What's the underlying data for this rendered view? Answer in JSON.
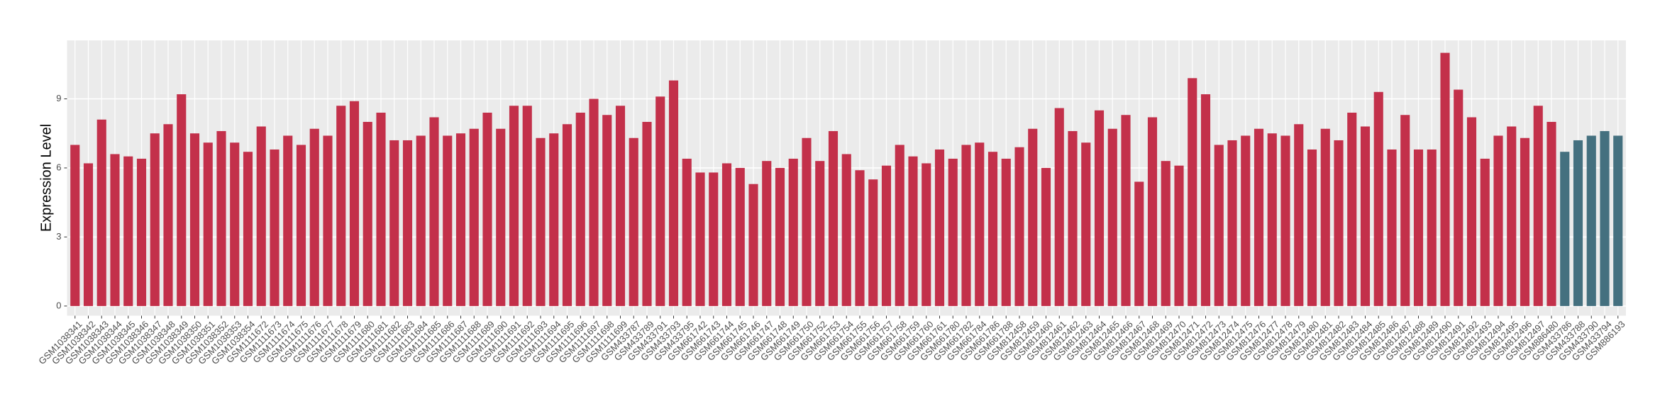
{
  "chart_data": {
    "type": "bar",
    "y_label": "Expression Level",
    "categories": [
      "GSM1038341",
      "GSM1038342",
      "GSM1038343",
      "GSM1038344",
      "GSM1038345",
      "GSM1038346",
      "GSM1038347",
      "GSM1038348",
      "GSM1038349",
      "GSM1038350",
      "GSM1038351",
      "GSM1038352",
      "GSM1038353",
      "GSM1038354",
      "GSM1111672",
      "GSM1111673",
      "GSM1111674",
      "GSM1111675",
      "GSM1111676",
      "GSM1111677",
      "GSM1111678",
      "GSM1111679",
      "GSM1111680",
      "GSM1111681",
      "GSM1111682",
      "GSM1111683",
      "GSM1111684",
      "GSM1111685",
      "GSM1111686",
      "GSM1111687",
      "GSM1111688",
      "GSM1111689",
      "GSM1111690",
      "GSM1111691",
      "GSM1111692",
      "GSM1111693",
      "GSM1111694",
      "GSM1111695",
      "GSM1111696",
      "GSM1111697",
      "GSM1111698",
      "GSM1111699",
      "GSM433787",
      "GSM433789",
      "GSM433791",
      "GSM433793",
      "GSM433795",
      "GSM661742",
      "GSM661743",
      "GSM661744",
      "GSM661745",
      "GSM661746",
      "GSM661747",
      "GSM661748",
      "GSM661749",
      "GSM661750",
      "GSM661752",
      "GSM661753",
      "GSM661754",
      "GSM661755",
      "GSM661756",
      "GSM661757",
      "GSM661758",
      "GSM661759",
      "GSM661760",
      "GSM661761",
      "GSM661780",
      "GSM661782",
      "GSM661784",
      "GSM661786",
      "GSM661788",
      "GSM812458",
      "GSM812459",
      "GSM812460",
      "GSM812461",
      "GSM812462",
      "GSM812463",
      "GSM812464",
      "GSM812465",
      "GSM812466",
      "GSM812467",
      "GSM812468",
      "GSM812469",
      "GSM812470",
      "GSM812471",
      "GSM812472",
      "GSM812473",
      "GSM812474",
      "GSM812475",
      "GSM812476",
      "GSM812477",
      "GSM812478",
      "GSM812479",
      "GSM812480",
      "GSM812481",
      "GSM812482",
      "GSM812483",
      "GSM812484",
      "GSM812485",
      "GSM812486",
      "GSM812487",
      "GSM812488",
      "GSM812489",
      "GSM812490",
      "GSM812491",
      "GSM812492",
      "GSM812493",
      "GSM812494",
      "GSM812495",
      "GSM812496",
      "GSM812497",
      "GSM886480",
      "GSM433786",
      "GSM433788",
      "GSM433790",
      "GSM433794",
      "GSM886193"
    ],
    "values": [
      7.0,
      6.2,
      8.1,
      6.6,
      6.5,
      6.4,
      7.5,
      7.9,
      9.2,
      7.5,
      7.1,
      7.6,
      7.1,
      6.7,
      7.8,
      6.8,
      7.4,
      7.0,
      7.7,
      7.4,
      8.7,
      8.9,
      8.0,
      8.4,
      7.2,
      7.2,
      7.4,
      8.2,
      7.4,
      7.5,
      7.7,
      8.4,
      7.7,
      8.7,
      8.7,
      7.3,
      7.5,
      7.9,
      8.4,
      9.0,
      8.3,
      8.7,
      7.3,
      8.0,
      9.1,
      9.8,
      6.4,
      5.8,
      5.8,
      6.2,
      6.0,
      5.3,
      6.3,
      6.0,
      6.4,
      7.3,
      6.3,
      7.6,
      6.6,
      5.9,
      5.5,
      6.1,
      7.0,
      6.5,
      6.2,
      6.8,
      6.4,
      7.0,
      7.1,
      6.7,
      6.4,
      6.9,
      7.7,
      6.0,
      8.6,
      7.6,
      7.1,
      8.5,
      7.7,
      8.3,
      5.4,
      8.2,
      6.3,
      6.1,
      9.9,
      9.2,
      7.0,
      7.2,
      7.4,
      7.7,
      7.5,
      7.4,
      7.9,
      6.8,
      7.7,
      7.2,
      8.4,
      7.8,
      9.3,
      6.8,
      8.3,
      6.8,
      6.8,
      11.0,
      9.4,
      8.2,
      6.4,
      7.4,
      7.8,
      7.3,
      8.7,
      8.0,
      6.7,
      7.2,
      7.4,
      7.6,
      7.4
    ],
    "colors": [
      "#c3304a",
      "#c3304a",
      "#c3304a",
      "#c3304a",
      "#c3304a",
      "#c3304a",
      "#c3304a",
      "#c3304a",
      "#c3304a",
      "#c3304a",
      "#c3304a",
      "#c3304a",
      "#c3304a",
      "#c3304a",
      "#c3304a",
      "#c3304a",
      "#c3304a",
      "#c3304a",
      "#c3304a",
      "#c3304a",
      "#c3304a",
      "#c3304a",
      "#c3304a",
      "#c3304a",
      "#c3304a",
      "#c3304a",
      "#c3304a",
      "#c3304a",
      "#c3304a",
      "#c3304a",
      "#c3304a",
      "#c3304a",
      "#c3304a",
      "#c3304a",
      "#c3304a",
      "#c3304a",
      "#c3304a",
      "#c3304a",
      "#c3304a",
      "#c3304a",
      "#c3304a",
      "#c3304a",
      "#c3304a",
      "#c3304a",
      "#c3304a",
      "#c3304a",
      "#c3304a",
      "#c3304a",
      "#c3304a",
      "#c3304a",
      "#c3304a",
      "#c3304a",
      "#c3304a",
      "#c3304a",
      "#c3304a",
      "#c3304a",
      "#c3304a",
      "#c3304a",
      "#c3304a",
      "#c3304a",
      "#c3304a",
      "#c3304a",
      "#c3304a",
      "#c3304a",
      "#c3304a",
      "#c3304a",
      "#c3304a",
      "#c3304a",
      "#c3304a",
      "#c3304a",
      "#c3304a",
      "#c3304a",
      "#c3304a",
      "#c3304a",
      "#c3304a",
      "#c3304a",
      "#c3304a",
      "#c3304a",
      "#c3304a",
      "#c3304a",
      "#c3304a",
      "#c3304a",
      "#c3304a",
      "#c3304a",
      "#c3304a",
      "#c3304a",
      "#c3304a",
      "#c3304a",
      "#c3304a",
      "#c3304a",
      "#c3304a",
      "#c3304a",
      "#c3304a",
      "#c3304a",
      "#c3304a",
      "#c3304a",
      "#c3304a",
      "#c3304a",
      "#c3304a",
      "#c3304a",
      "#c3304a",
      "#c3304a",
      "#c3304a",
      "#c3304a",
      "#c3304a",
      "#c3304a",
      "#c3304a",
      "#c3304a",
      "#c3304a",
      "#c3304a",
      "#c3304a",
      "#c3304a",
      "#44707f",
      "#44707f",
      "#44707f",
      "#44707f",
      "#44707f"
    ],
    "ylim": [
      -0.42,
      11.54
    ],
    "yticks": [
      0,
      3,
      6,
      9
    ],
    "grid": true
  }
}
